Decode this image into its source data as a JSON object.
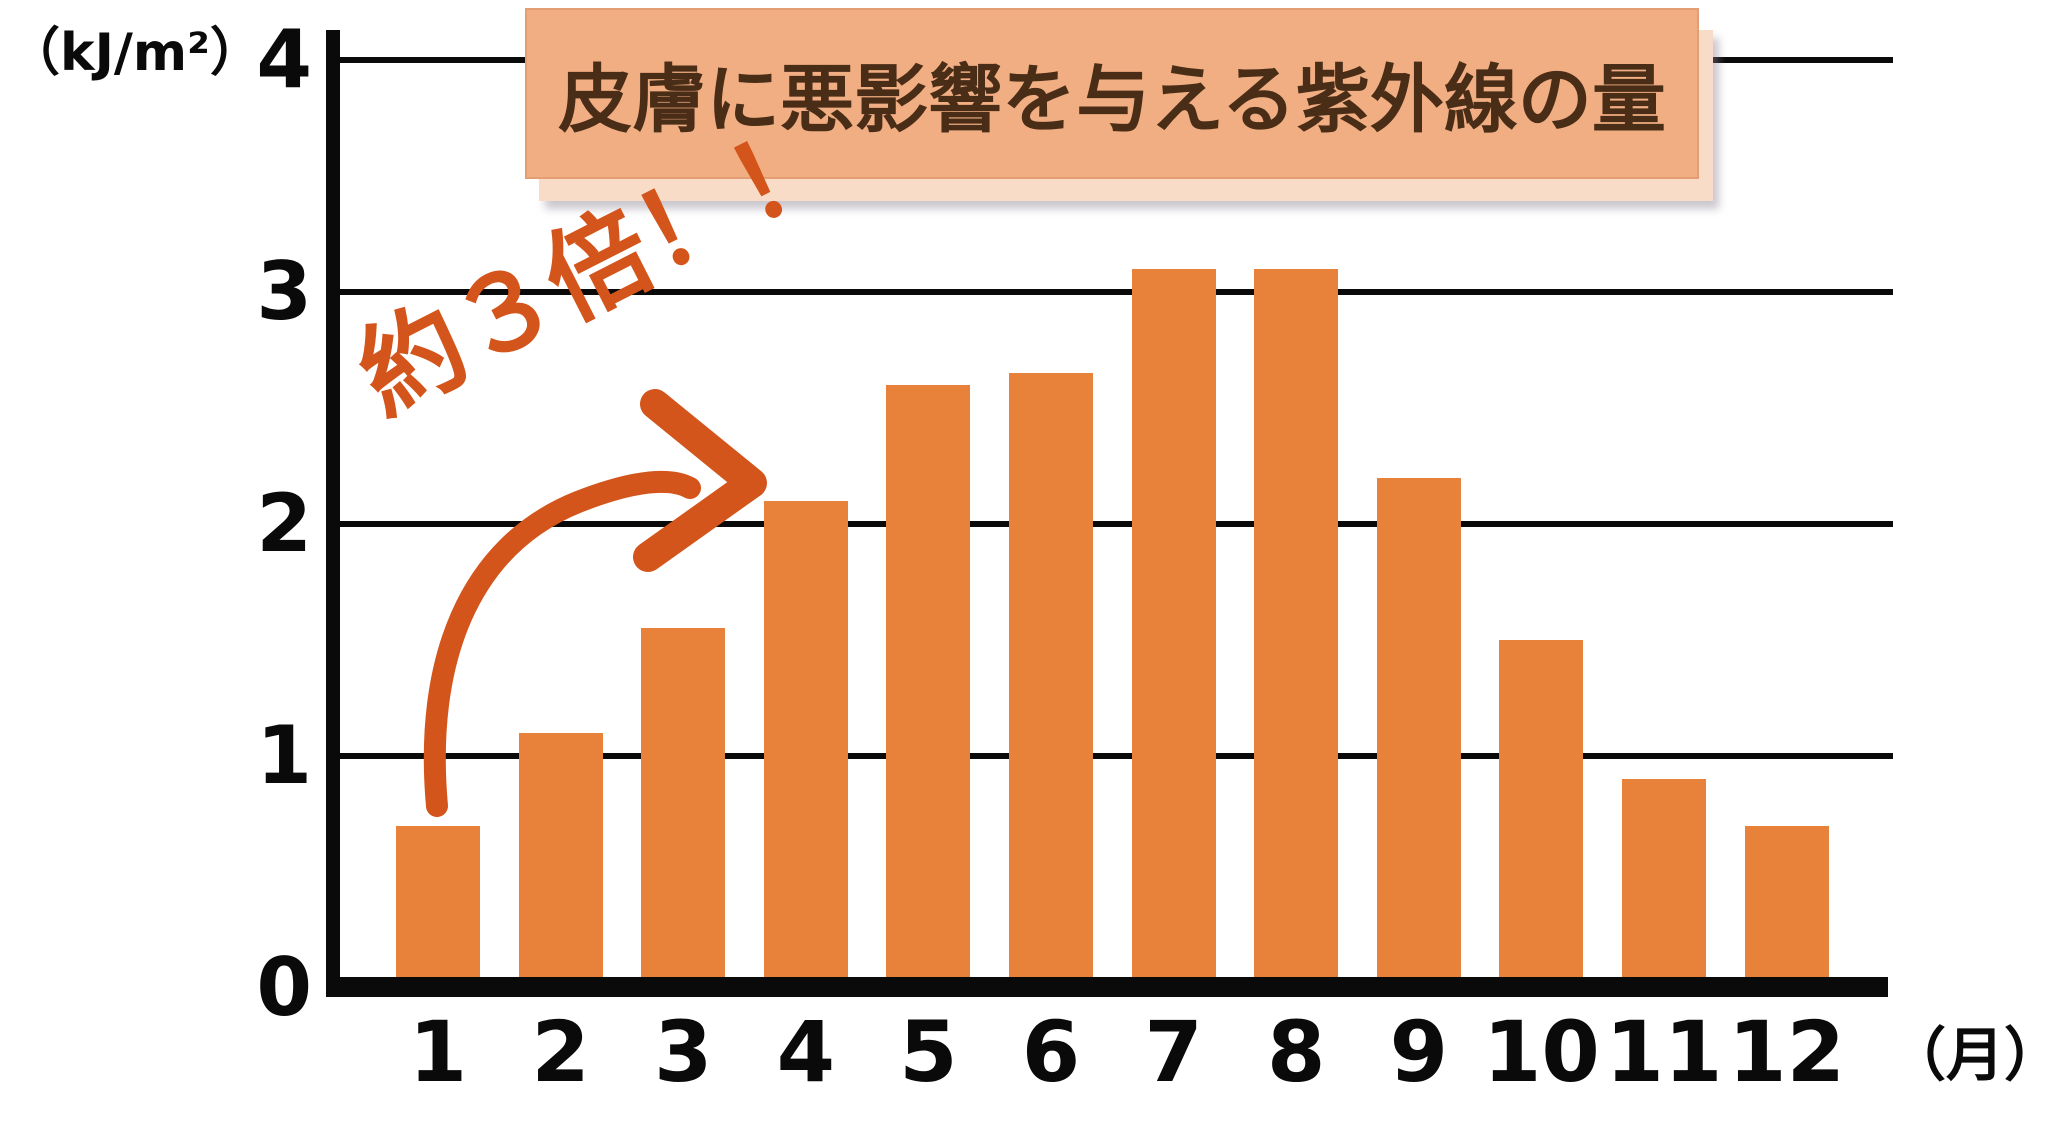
{
  "page": {
    "title": "皮膚に悪影響を与える紫外線の量",
    "y_axis_unit": "（kJ/m²）",
    "x_axis_unit": "（月）",
    "annotation": "約３倍！！"
  },
  "colors": {
    "bar": "#e8823a",
    "accent": "#d4551c",
    "title_bg": "#f2ae83",
    "title_text": "#4a2d17",
    "axis_and_text": "#0a0a0a",
    "title_shadow": "#f8dcc8",
    "background": "#ffffff"
  },
  "chart_data": {
    "type": "bar",
    "title": "皮膚に悪影響を与える紫外線の量",
    "categories": [
      "1",
      "2",
      "3",
      "4",
      "5",
      "6",
      "7",
      "8",
      "9",
      "10",
      "11",
      "12"
    ],
    "values": [
      0.7,
      1.1,
      1.55,
      2.1,
      2.6,
      2.65,
      3.1,
      3.1,
      2.2,
      1.5,
      0.9,
      0.7
    ],
    "xlabel": "月",
    "ylabel": "kJ/m²",
    "ylim": [
      0,
      4
    ],
    "yticks": [
      0,
      1,
      2,
      3,
      4
    ],
    "grid": "horizontal-only",
    "legend": "none",
    "bar_color": "#e8823a",
    "annotation": {
      "text": "約３倍！！",
      "from_category": "1",
      "to_category": "4"
    }
  }
}
